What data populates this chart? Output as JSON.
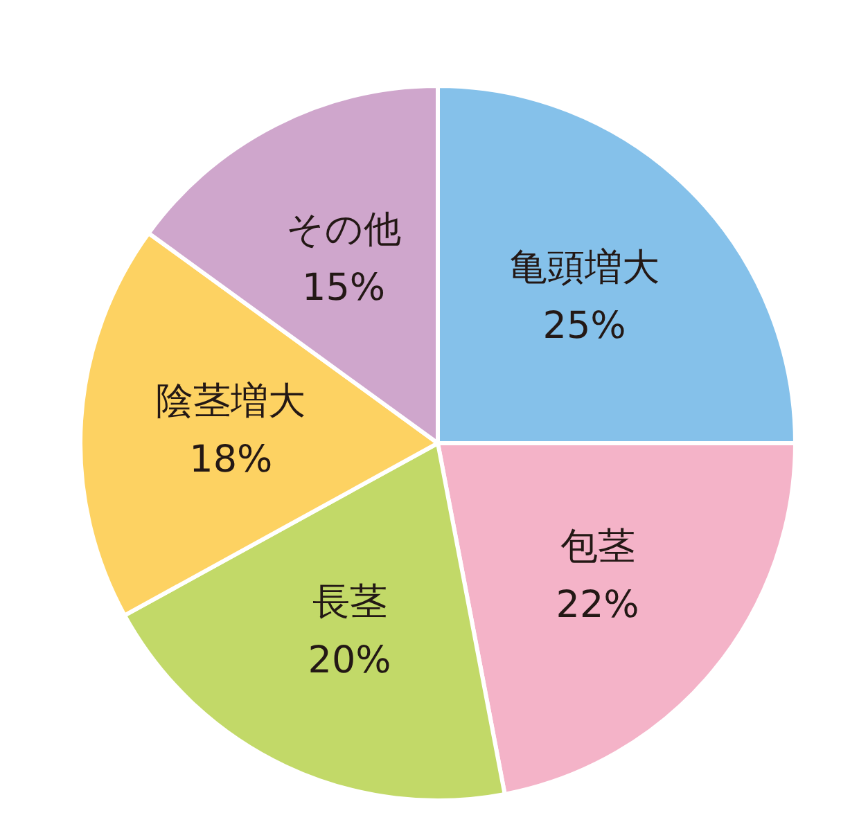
{
  "chart_data": {
    "type": "pie",
    "categories": [
      "亀頭増大",
      "包茎",
      "長茎",
      "陰茎増大",
      "その他"
    ],
    "values": [
      25,
      22,
      20,
      18,
      15
    ],
    "value_labels": [
      "25%",
      "22%",
      "20%",
      "18%",
      "15%"
    ],
    "colors": [
      "#85c1ea",
      "#f4b3c8",
      "#c2d968",
      "#fdd262",
      "#cfa6cc"
    ],
    "legend": false
  }
}
